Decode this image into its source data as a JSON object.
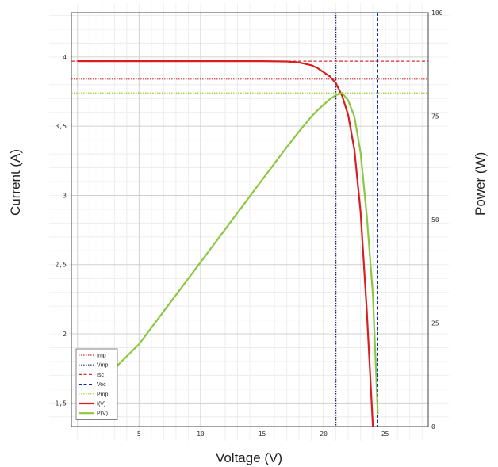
{
  "chart_data": {
    "type": "line",
    "xlabel": "Voltage (V)",
    "ylabel": "Current (A)",
    "y2label": "Power (W)",
    "xlim": [
      -0.5,
      28.5
    ],
    "ylim": [
      1.33,
      4.32
    ],
    "y2lim": [
      0,
      100
    ],
    "grid": true,
    "legend_position": "bottom-left",
    "x_ticks": [
      5,
      10,
      15,
      20,
      25
    ],
    "y_ticks": [
      1.5,
      2,
      2.5,
      3,
      3.5,
      4
    ],
    "y_tick_labels": [
      "1,5",
      "2",
      "2,5",
      "3",
      "3,5",
      "4"
    ],
    "y2_ticks": [
      0,
      25,
      50,
      75,
      100
    ],
    "reference_lines": [
      {
        "name": "Imp",
        "axis": "y",
        "value": 3.84,
        "color": "#d32f2f",
        "style": "dotted"
      },
      {
        "name": "Vmp",
        "axis": "x",
        "value": 21.0,
        "color": "#1a237e",
        "style": "dotted"
      },
      {
        "name": "Isc",
        "axis": "y",
        "value": 3.97,
        "color": "#d32f2f",
        "style": "dashed"
      },
      {
        "name": "Voc",
        "axis": "x",
        "value": 24.4,
        "color": "#0d2ba8",
        "style": "dashed"
      },
      {
        "name": "Pmp",
        "axis": "y2",
        "value": 80.6,
        "color": "#9acd32",
        "style": "dotted"
      }
    ],
    "series": [
      {
        "name": "I(V)",
        "axis": "y",
        "color": "#d81e1e",
        "x": [
          0,
          5,
          10,
          15,
          17,
          18,
          19,
          19.5,
          20,
          20.5,
          21,
          21.5,
          22,
          22.5,
          23,
          23.5,
          24
        ],
        "y": [
          3.97,
          3.97,
          3.97,
          3.97,
          3.968,
          3.96,
          3.94,
          3.92,
          3.89,
          3.86,
          3.81,
          3.72,
          3.58,
          3.33,
          2.88,
          2.18,
          1.33
        ]
      },
      {
        "name": "P(V)",
        "axis": "y2",
        "color": "#8dc63f",
        "x": [
          3.0,
          5,
          10,
          15,
          17,
          18,
          19,
          19.5,
          20,
          20.5,
          21,
          21.5,
          22,
          22.5,
          23,
          23.5,
          24,
          24.4
        ],
        "y": [
          14.0,
          19.9,
          39.7,
          59.6,
          67.5,
          71.3,
          74.9,
          76.4,
          77.8,
          79.1,
          80.1,
          80.6,
          78.8,
          74.9,
          66.2,
          51.2,
          31.9,
          3.0
        ]
      }
    ]
  }
}
